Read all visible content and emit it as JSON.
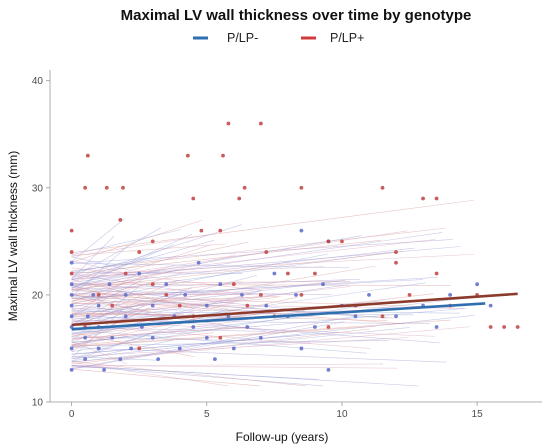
{
  "chart_data": {
    "type": "scatter",
    "title": "Maximal LV wall thickness over time by genotype",
    "xlabel": "Follow-up (years)",
    "ylabel": "Maximal LV wall thickness (mm)",
    "xlim": [
      -0.8,
      17.4
    ],
    "ylim": [
      10,
      41
    ],
    "x_ticks": [
      0,
      5,
      10,
      15
    ],
    "y_ticks": [
      10,
      20,
      30,
      40
    ],
    "grid": false,
    "legend_position": "top",
    "colors": {
      "P/LP-": "#2f6fb0",
      "P/LP+": "#d13a3a",
      "point_minus": "#5b69c9",
      "point_plus": "#c24040",
      "trend_plus": "#8c3a2c"
    },
    "series": [
      {
        "name": "P/LP-",
        "points": [
          [
            0,
            13
          ],
          [
            0,
            15
          ],
          [
            0,
            17
          ],
          [
            0,
            18
          ],
          [
            0,
            19
          ],
          [
            0,
            20
          ],
          [
            0,
            21
          ],
          [
            0,
            23
          ],
          [
            0.5,
            14
          ],
          [
            0.5,
            16
          ],
          [
            0.6,
            18
          ],
          [
            0.8,
            20
          ],
          [
            1,
            15
          ],
          [
            1,
            17
          ],
          [
            1,
            19
          ],
          [
            1.2,
            13
          ],
          [
            1.4,
            21
          ],
          [
            1.5,
            16
          ],
          [
            1.8,
            14
          ],
          [
            2,
            18
          ],
          [
            2,
            20
          ],
          [
            2.2,
            15
          ],
          [
            2.5,
            22
          ],
          [
            2.6,
            17
          ],
          [
            3,
            16
          ],
          [
            3,
            19
          ],
          [
            3.2,
            14
          ],
          [
            3.5,
            21
          ],
          [
            3.8,
            18
          ],
          [
            4,
            15
          ],
          [
            4.2,
            20
          ],
          [
            4.5,
            17
          ],
          [
            4.7,
            23
          ],
          [
            5,
            16
          ],
          [
            5,
            19
          ],
          [
            5.3,
            14
          ],
          [
            5.5,
            21
          ],
          [
            5.8,
            18
          ],
          [
            6,
            15
          ],
          [
            6.3,
            20
          ],
          [
            6.5,
            17
          ],
          [
            7,
            16
          ],
          [
            7.2,
            19
          ],
          [
            7.5,
            22
          ],
          [
            8,
            18
          ],
          [
            8.3,
            20
          ],
          [
            8.5,
            15
          ],
          [
            9,
            17
          ],
          [
            9.3,
            21
          ],
          [
            9.5,
            13
          ],
          [
            10,
            19
          ],
          [
            10.5,
            18
          ],
          [
            11,
            20
          ],
          [
            12,
            18
          ],
          [
            13,
            19
          ],
          [
            13.5,
            17
          ],
          [
            14,
            20
          ],
          [
            15,
            21
          ],
          [
            15.5,
            19
          ],
          [
            8.5,
            26
          ],
          [
            9.5,
            25
          ]
        ],
        "trend": [
          [
            0,
            16.8
          ],
          [
            15.3,
            19.2
          ]
        ]
      },
      {
        "name": "P/LP+",
        "points": [
          [
            0,
            24
          ],
          [
            0,
            26
          ],
          [
            0.5,
            30
          ],
          [
            0.6,
            33
          ],
          [
            1.3,
            30
          ],
          [
            1.8,
            27
          ],
          [
            1.9,
            30
          ],
          [
            2.5,
            24
          ],
          [
            3,
            25
          ],
          [
            4.3,
            33
          ],
          [
            4.5,
            29
          ],
          [
            4.8,
            26
          ],
          [
            5.5,
            26
          ],
          [
            5.8,
            36
          ],
          [
            5.6,
            33
          ],
          [
            6.2,
            29
          ],
          [
            6.4,
            30
          ],
          [
            7,
            36
          ],
          [
            7.2,
            24
          ],
          [
            8.5,
            30
          ],
          [
            9,
            22
          ],
          [
            9.5,
            25
          ],
          [
            10,
            25
          ],
          [
            11.5,
            30
          ],
          [
            12,
            24
          ],
          [
            13,
            29
          ],
          [
            13.5,
            29
          ],
          [
            15.5,
            17
          ],
          [
            16,
            17
          ],
          [
            16.5,
            17
          ],
          [
            0.5,
            17
          ],
          [
            1.5,
            19
          ],
          [
            2.5,
            15
          ],
          [
            3.5,
            20
          ],
          [
            4.5,
            18
          ],
          [
            5.5,
            16
          ],
          [
            6.5,
            19
          ],
          [
            7.5,
            18
          ],
          [
            8.5,
            20
          ],
          [
            9.5,
            17
          ],
          [
            10.5,
            19
          ],
          [
            11.5,
            18
          ],
          [
            12.5,
            20
          ],
          [
            13.5,
            22
          ],
          [
            14,
            19
          ],
          [
            15,
            20
          ],
          [
            0,
            22
          ],
          [
            1,
            20
          ],
          [
            2,
            22
          ],
          [
            3,
            21
          ],
          [
            4,
            19
          ],
          [
            6,
            21
          ],
          [
            7,
            20
          ],
          [
            8,
            22
          ],
          [
            12,
            23
          ]
        ],
        "trend": [
          [
            0,
            17.2
          ],
          [
            16.5,
            20.1
          ]
        ]
      }
    ]
  }
}
